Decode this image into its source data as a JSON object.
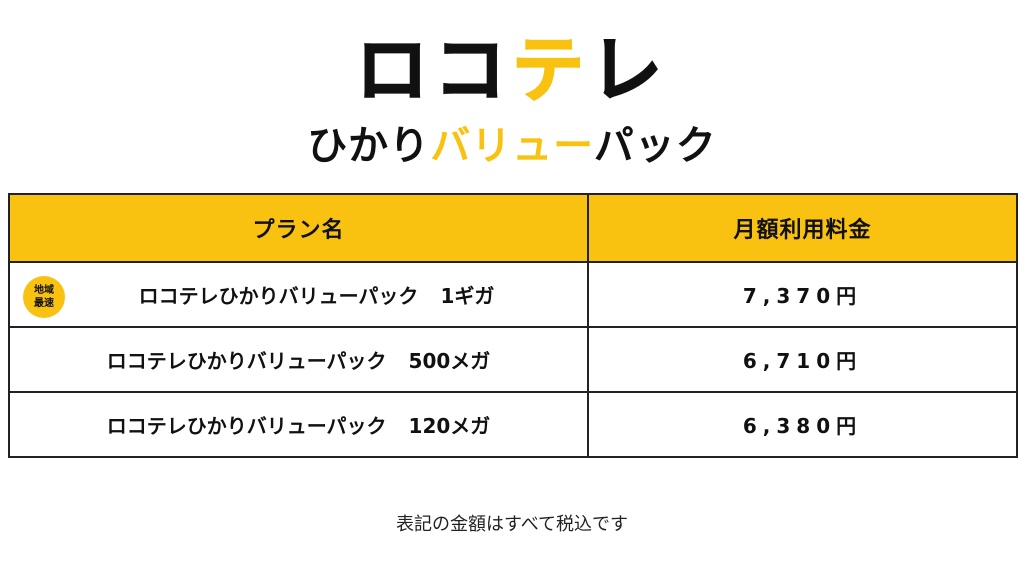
{
  "logo": {
    "part1": "ロコ",
    "part2": "テ",
    "part3": "レ"
  },
  "subtitle": {
    "part1": "ひかり",
    "part2": "バリュー",
    "part3": "パック"
  },
  "table": {
    "headers": [
      "プラン名",
      "月額利用料金"
    ],
    "rows": [
      {
        "badge_line1": "地域",
        "badge_line2": "最速",
        "name": "ロコテレひかりバリューパック",
        "speed": "1ギガ",
        "price": "7,370円"
      },
      {
        "name": "ロコテレひかりバリューパック",
        "speed": "500メガ",
        "price": "6,710円"
      },
      {
        "name": "ロコテレひかりバリューパック",
        "speed": "120メガ",
        "price": "6,380円"
      }
    ]
  },
  "footnote": "表記の金額はすべて税込です",
  "colors": {
    "accent": "#f9c211",
    "text": "#111111",
    "border": "#222222"
  }
}
